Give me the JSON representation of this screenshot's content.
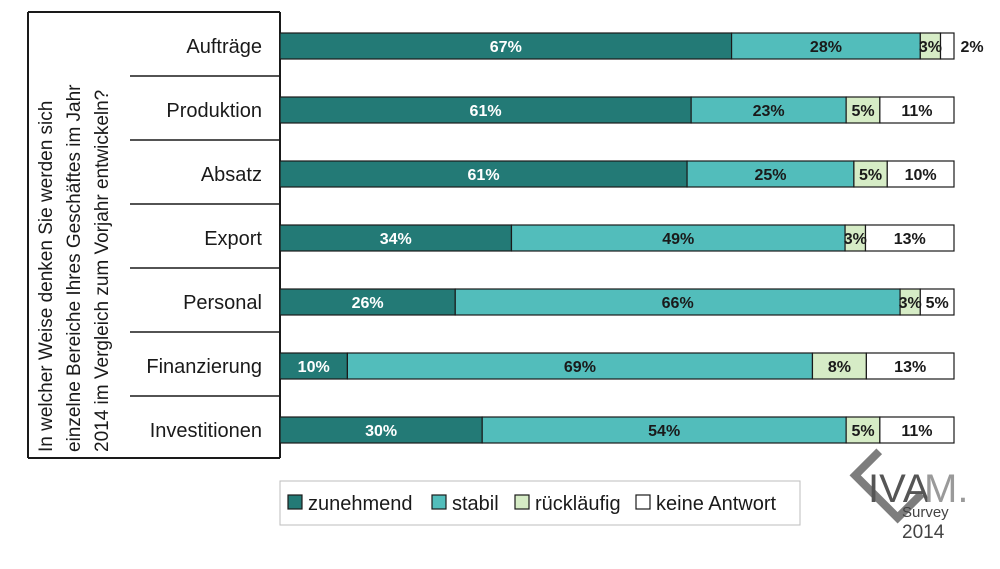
{
  "chart_data": {
    "type": "bar",
    "orientation": "horizontal",
    "stacked": true,
    "normalized": true,
    "title": "In welcher Weise denken Sie werden sich einzelne Bereiche Ihres Geschäftes im Jahr 2014 im Vergleich zum Vorjahr entwickeln?",
    "question_lines": [
      "In welcher Weise denken Sie werden sich",
      "einzelne Bereiche Ihres Geschäftes im Jahr",
      "2014 im Vergleich zum Vorjahr entwickeln?"
    ],
    "categories": [
      "Aufträge",
      "Produktion",
      "Absatz",
      "Export",
      "Personal",
      "Finanzierung",
      "Investitionen"
    ],
    "series": [
      {
        "name": "zunehmend",
        "color": "#237a76",
        "label_color": "#ffffff",
        "values": [
          67,
          61,
          61,
          34,
          26,
          10,
          30
        ],
        "labels": [
          "67%",
          "61%",
          "61%",
          "34%",
          "26%",
          "10%",
          "30%"
        ]
      },
      {
        "name": "stabil",
        "color": "#52bdbb",
        "label_color": "#1a1a1a",
        "values": [
          28,
          23,
          25,
          49,
          66,
          69,
          54
        ],
        "labels": [
          "28%",
          "23%",
          "25%",
          "49%",
          "66%",
          "69%",
          "54%"
        ]
      },
      {
        "name": "rückläufig",
        "color": "#d6ecc6",
        "label_color": "#1a1a1a",
        "values": [
          3,
          5,
          5,
          3,
          3,
          8,
          5
        ],
        "labels": [
          "3%",
          "5%",
          "5%",
          "3%",
          "3%",
          "8%",
          "5%"
        ]
      },
      {
        "name": "keine Antwort",
        "color": "#ffffff",
        "label_color": "#1a1a1a",
        "values": [
          2,
          11,
          10,
          13,
          5,
          13,
          11
        ],
        "labels": [
          "2%",
          "11%",
          "10%",
          "13%",
          "5%",
          "13%",
          "11%"
        ]
      }
    ],
    "xlim": [
      0,
      100
    ],
    "grid": false,
    "legend_position": "bottom"
  },
  "logo": {
    "main": "IVA",
    "accent": "M.",
    "sub": "Survey",
    "year": "2014"
  }
}
